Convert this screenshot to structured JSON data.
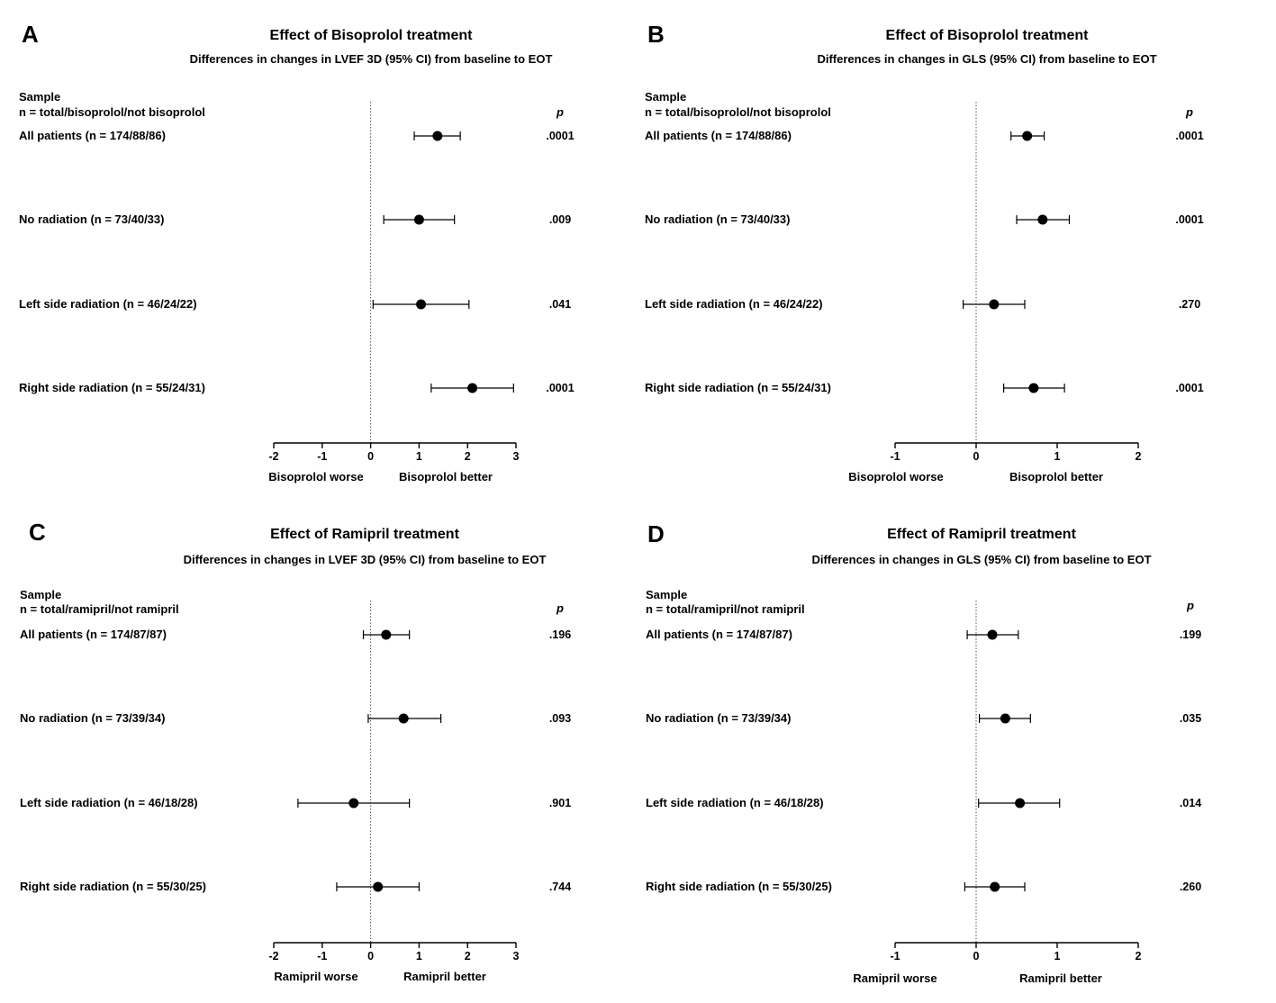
{
  "panels": [
    {
      "letter": "A",
      "title": "Effect of Bisoprolol treatment",
      "subtitle": "Differences in changes in LVEF 3D (95% CI) from baseline to EOT",
      "sample_header": "Sample",
      "n_header": "n = total/bisoprolol/not bisoprolol",
      "p_header": "p",
      "worse_label": "Bisoprolol worse",
      "better_label": "Bisoprolol better"
    },
    {
      "letter": "B",
      "title": "Effect of Bisoprolol treatment",
      "subtitle": "Differences in changes in GLS (95% CI) from baseline to EOT",
      "sample_header": "Sample",
      "n_header": "n = total/bisoprolol/not bisoprolol",
      "p_header": "p",
      "worse_label": "Bisoprolol worse",
      "better_label": "Bisoprolol better"
    },
    {
      "letter": "C",
      "title": "Effect of Ramipril treatment",
      "subtitle": "Differences in changes in LVEF 3D (95% CI) from baseline to EOT",
      "sample_header": "Sample",
      "n_header": "n = total/ramipril/not ramipril",
      "p_header": "p",
      "worse_label": "Ramipril worse",
      "better_label": "Ramipril better"
    },
    {
      "letter": "D",
      "title": "Effect of Ramipril treatment",
      "subtitle": "Differences in changes in GLS (95% CI) from baseline to EOT",
      "sample_header": "Sample",
      "n_header": "n = total/ramipril/not ramipril",
      "p_header": "p",
      "worse_label": "Ramipril worse",
      "better_label": "Ramipril better"
    }
  ],
  "chart_data": [
    {
      "type": "forest",
      "panel": "A",
      "xlim": [
        -2,
        3
      ],
      "xticks": [
        "-2",
        "-1",
        "0",
        "1",
        "2",
        "3"
      ],
      "reference_line": 0,
      "rows": [
        {
          "label": "All patients (n = 174/88/86)",
          "est": 1.38,
          "lo": 0.9,
          "hi": 1.85,
          "p": ".0001"
        },
        {
          "label": "No radiation (n = 73/40/33)",
          "est": 1.0,
          "lo": 0.27,
          "hi": 1.73,
          "p": ".009"
        },
        {
          "label": "Left side radiation (n = 46/24/22)",
          "est": 1.04,
          "lo": 0.05,
          "hi": 2.03,
          "p": ".041"
        },
        {
          "label": "Right side radiation (n = 55/24/31)",
          "est": 2.1,
          "lo": 1.25,
          "hi": 2.95,
          "p": ".0001"
        }
      ]
    },
    {
      "type": "forest",
      "panel": "B",
      "xlim": [
        -1,
        2
      ],
      "xticks": [
        "-1",
        "0",
        "1",
        "2"
      ],
      "reference_line": 0,
      "rows": [
        {
          "label": "All patients (n = 174/88/86)",
          "est": 0.63,
          "lo": 0.43,
          "hi": 0.84,
          "p": ".0001"
        },
        {
          "label": "No radiation (n = 73/40/33)",
          "est": 0.82,
          "lo": 0.5,
          "hi": 1.15,
          "p": ".0001"
        },
        {
          "label": "Left side radiation (n = 46/24/22)",
          "est": 0.22,
          "lo": -0.16,
          "hi": 0.6,
          "p": ".270"
        },
        {
          "label": "Right side radiation (n = 55/24/31)",
          "est": 0.71,
          "lo": 0.34,
          "hi": 1.09,
          "p": ".0001"
        }
      ]
    },
    {
      "type": "forest",
      "panel": "C",
      "xlim": [
        -2,
        3
      ],
      "xticks": [
        "-2",
        "-1",
        "0",
        "1",
        "2",
        "3"
      ],
      "reference_line": 0,
      "rows": [
        {
          "label": "All patients (n = 174/87/87)",
          "est": 0.32,
          "lo": -0.15,
          "hi": 0.8,
          "p": ".196"
        },
        {
          "label": "No radiation (n = 73/39/34)",
          "est": 0.68,
          "lo": -0.05,
          "hi": 1.45,
          "p": ".093"
        },
        {
          "label": "Left side radiation (n = 46/18/28)",
          "est": -0.35,
          "lo": -1.5,
          "hi": 0.8,
          "p": ".901"
        },
        {
          "label": "Right side radiation (n = 55/30/25)",
          "est": 0.15,
          "lo": -0.7,
          "hi": 1.0,
          "p": ".744"
        }
      ]
    },
    {
      "type": "forest",
      "panel": "D",
      "xlim": [
        -1,
        2
      ],
      "xticks": [
        "-1",
        "0",
        "1",
        "2"
      ],
      "reference_line": 0,
      "rows": [
        {
          "label": "All patients (n = 174/87/87)",
          "est": 0.2,
          "lo": -0.11,
          "hi": 0.52,
          "p": ".199"
        },
        {
          "label": "No radiation (n = 73/39/34)",
          "est": 0.36,
          "lo": 0.04,
          "hi": 0.67,
          "p": ".035"
        },
        {
          "label": "Left side radiation (n = 46/18/28)",
          "est": 0.54,
          "lo": 0.03,
          "hi": 1.03,
          "p": ".014"
        },
        {
          "label": "Right side radiation (n = 55/30/25)",
          "est": 0.23,
          "lo": -0.14,
          "hi": 0.6,
          "p": ".260"
        }
      ]
    }
  ]
}
